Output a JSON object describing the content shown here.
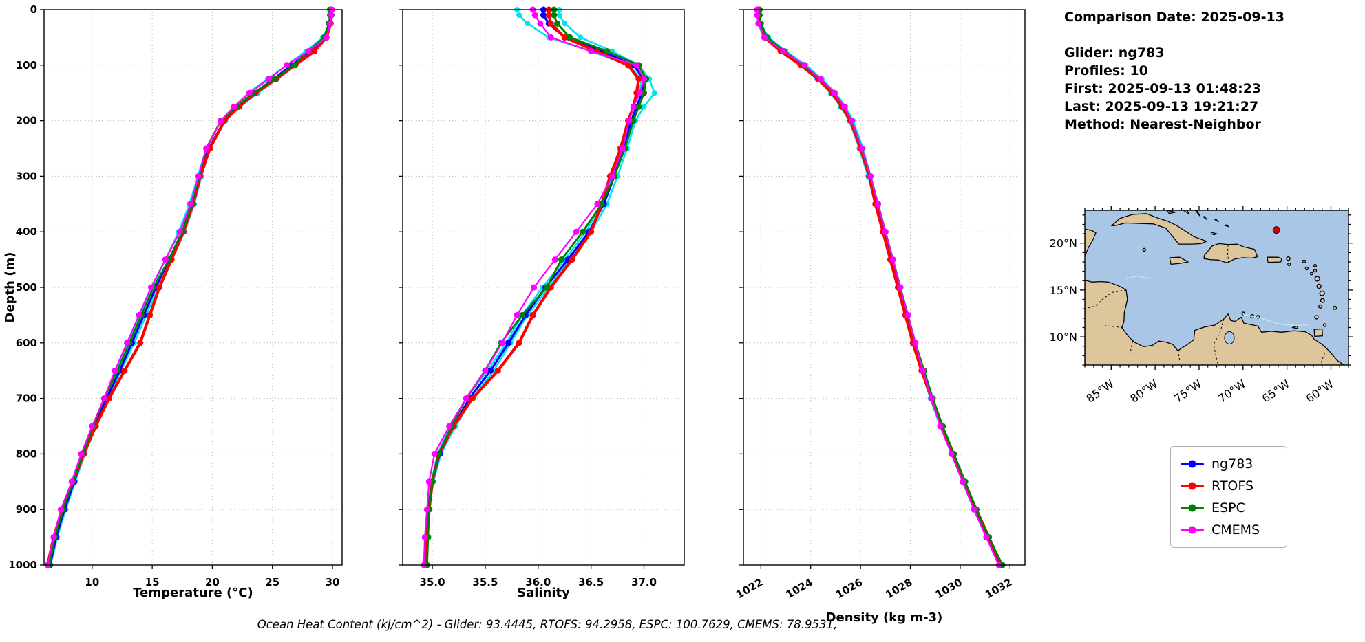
{
  "info": {
    "comparison_date": "Comparison Date: 2025-09-13",
    "glider": "Glider: ng783",
    "profiles": "Profiles: 10",
    "first": "First: 2025-09-13 01:48:23",
    "last": "Last: 2025-09-13 19:21:27",
    "method": "Method: Nearest-Neighbor"
  },
  "footer": {
    "ohc_text": "Ocean Heat Content (kJ/cm^2) - Glider: 93.4445,  RTOFS: 94.2958,  ESPC: 100.7629,  CMEMS: 78.9531,"
  },
  "map": {
    "extent": {
      "lon_min": -88,
      "lon_max": -58,
      "lat_min": 7,
      "lat_max": 23.5
    },
    "lat_ticks": [
      {
        "value": 20,
        "label": "20°N"
      },
      {
        "value": 15,
        "label": "15°N"
      },
      {
        "value": 10,
        "label": "10°N"
      }
    ],
    "lon_ticks": [
      {
        "value": -85,
        "label": "85°W"
      },
      {
        "value": -80,
        "label": "80°W"
      },
      {
        "value": -75,
        "label": "75°W"
      },
      {
        "value": -70,
        "label": "70°W"
      },
      {
        "value": -65,
        "label": "65°W"
      },
      {
        "value": -60,
        "label": "60°W"
      }
    ],
    "marker": {
      "lon": -66.2,
      "lat": 21.4,
      "color": "#d40000"
    },
    "ocean_color": "#a9c6e6",
    "land_color": "#dec69c"
  },
  "chart_data": {
    "type": "line",
    "ylabel": "Depth (m)",
    "ylim": [
      0,
      1000
    ],
    "yticks": [
      0,
      100,
      200,
      300,
      400,
      500,
      600,
      700,
      800,
      900,
      1000
    ],
    "grid": "dotted",
    "legend_position": "right-outside",
    "depths": [
      0,
      10,
      25,
      50,
      75,
      100,
      125,
      150,
      175,
      200,
      250,
      300,
      350,
      400,
      450,
      500,
      550,
      600,
      650,
      700,
      750,
      800,
      850,
      900,
      950,
      1000
    ],
    "panels": [
      {
        "id": "temperature",
        "xlabel": "Temperature (°C)",
        "xlim": [
          6,
          30.8
        ],
        "xticks": [
          10,
          15,
          20,
          25,
          30
        ],
        "xtick_labels": [
          "10",
          "15",
          "20",
          "25",
          "30"
        ],
        "rotate_xticks": false
      },
      {
        "id": "salinity",
        "xlabel": "Salinity",
        "xlim": [
          34.72,
          37.38
        ],
        "xticks": [
          35.0,
          35.5,
          36.0,
          36.5,
          37.0
        ],
        "xtick_labels": [
          "35.0",
          "35.5",
          "36.0",
          "36.5",
          "37.0"
        ],
        "rotate_xticks": false
      },
      {
        "id": "density",
        "xlabel": "Density (kg m-3)",
        "xlim": [
          1021.3,
          1032.6
        ],
        "xticks": [
          1022,
          1024,
          1026,
          1028,
          1030,
          1032
        ],
        "xtick_labels": [
          "1022",
          "1024",
          "1026",
          "1028",
          "1030",
          "1032"
        ],
        "rotate_xticks": true
      }
    ],
    "series": [
      {
        "name": "glider-profile-a",
        "color": "#00e5f0",
        "lw": 2.6,
        "ms": 4,
        "in_legend": false,
        "temperature": [
          30.0,
          29.95,
          29.85,
          29.45,
          28.4,
          26.9,
          25.4,
          23.8,
          22.3,
          21.1,
          19.8,
          19.1,
          18.5,
          17.7,
          16.6,
          15.5,
          14.5,
          13.5,
          12.4,
          11.3,
          10.3,
          9.4,
          8.6,
          7.8,
          7.1,
          6.55
        ],
        "salinity": [
          36.2,
          36.2,
          36.25,
          36.4,
          36.7,
          36.95,
          37.05,
          37.1,
          37.0,
          36.92,
          36.84,
          36.75,
          36.65,
          36.5,
          36.3,
          36.1,
          35.9,
          35.74,
          35.58,
          35.38,
          35.22,
          35.08,
          35.01,
          34.97,
          34.95,
          34.94
        ],
        "density": [
          1021.95,
          1021.95,
          1022.0,
          1022.3,
          1023.0,
          1023.8,
          1024.45,
          1025.0,
          1025.4,
          1025.7,
          1026.1,
          1026.4,
          1026.7,
          1027.0,
          1027.3,
          1027.6,
          1027.9,
          1028.2,
          1028.55,
          1028.9,
          1029.3,
          1029.75,
          1030.2,
          1030.65,
          1031.1,
          1031.6
        ]
      },
      {
        "name": "glider-profile-b",
        "color": "#00e5f0",
        "lw": 2.6,
        "ms": 4,
        "in_legend": false,
        "temperature": [
          29.85,
          29.85,
          29.75,
          29.2,
          27.8,
          26.2,
          24.6,
          23.0,
          21.8,
          20.7,
          19.5,
          18.8,
          18.1,
          17.2,
          16.1,
          15.0,
          14.0,
          13.0,
          12.0,
          11.0,
          10.05,
          9.1,
          8.3,
          7.5,
          6.85,
          6.4
        ],
        "salinity": [
          35.8,
          35.82,
          35.9,
          36.1,
          36.5,
          36.85,
          36.98,
          36.95,
          36.9,
          36.85,
          36.77,
          36.7,
          36.6,
          36.45,
          36.25,
          36.04,
          35.85,
          35.7,
          35.52,
          35.32,
          35.17,
          35.05,
          34.99,
          34.95,
          34.93,
          34.92
        ],
        "density": [
          1021.85,
          1021.85,
          1021.9,
          1022.1,
          1022.8,
          1023.6,
          1024.25,
          1024.8,
          1025.2,
          1025.55,
          1025.95,
          1026.3,
          1026.6,
          1026.9,
          1027.2,
          1027.5,
          1027.8,
          1028.1,
          1028.45,
          1028.8,
          1029.2,
          1029.65,
          1030.1,
          1030.55,
          1031.05,
          1031.55
        ]
      },
      {
        "name": "ng783",
        "color": "#0000ff",
        "lw": 3.2,
        "ms": 4.5,
        "in_legend": true,
        "temperature": [
          29.9,
          29.9,
          29.8,
          29.4,
          28.2,
          26.6,
          25.1,
          23.5,
          22.1,
          21.0,
          19.7,
          18.95,
          18.3,
          17.5,
          16.4,
          15.3,
          14.3,
          13.3,
          12.3,
          11.2,
          10.2,
          9.3,
          8.5,
          7.7,
          7.0,
          6.5
        ],
        "salinity": [
          36.05,
          36.05,
          36.1,
          36.25,
          36.6,
          36.9,
          37.0,
          36.98,
          36.93,
          36.88,
          36.8,
          36.72,
          36.62,
          36.48,
          36.28,
          36.07,
          35.88,
          35.72,
          35.55,
          35.35,
          35.2,
          35.07,
          35.0,
          34.96,
          34.94,
          34.93
        ],
        "density": [
          1021.9,
          1021.9,
          1021.95,
          1022.2,
          1022.9,
          1023.7,
          1024.35,
          1024.9,
          1025.3,
          1025.6,
          1026.0,
          1026.35,
          1026.65,
          1026.95,
          1027.25,
          1027.55,
          1027.85,
          1028.15,
          1028.5,
          1028.85,
          1029.25,
          1029.7,
          1030.15,
          1030.6,
          1031.1,
          1031.6
        ]
      },
      {
        "name": "RTOFS",
        "color": "#ff0000",
        "lw": 4.2,
        "ms": 4.5,
        "in_legend": true,
        "temperature": [
          29.9,
          29.9,
          29.85,
          29.5,
          28.5,
          26.9,
          25.3,
          23.6,
          22.2,
          21.0,
          19.8,
          19.0,
          18.4,
          17.6,
          16.6,
          15.6,
          14.8,
          14.0,
          12.7,
          11.4,
          10.3,
          9.3,
          8.4,
          7.5,
          6.8,
          6.3
        ],
        "salinity": [
          36.1,
          36.1,
          36.12,
          36.25,
          36.55,
          36.85,
          36.95,
          36.93,
          36.9,
          36.85,
          36.78,
          36.68,
          36.6,
          36.5,
          36.32,
          36.12,
          35.95,
          35.82,
          35.62,
          35.38,
          35.2,
          35.06,
          35.0,
          34.97,
          34.95,
          34.94
        ],
        "density": [
          1021.9,
          1021.9,
          1021.95,
          1022.15,
          1022.8,
          1023.6,
          1024.3,
          1024.85,
          1025.25,
          1025.6,
          1026.0,
          1026.35,
          1026.6,
          1026.9,
          1027.2,
          1027.5,
          1027.8,
          1028.1,
          1028.45,
          1028.85,
          1029.25,
          1029.7,
          1030.15,
          1030.65,
          1031.15,
          1031.65
        ]
      },
      {
        "name": "ESPC",
        "color": "#008000",
        "lw": 2.8,
        "ms": 4.5,
        "in_legend": true,
        "temperature": [
          29.8,
          29.8,
          29.7,
          29.3,
          28.0,
          26.8,
          25.2,
          23.4,
          22.0,
          20.7,
          19.5,
          18.9,
          18.3,
          17.5,
          16.4,
          15.1,
          14.1,
          13.1,
          12.1,
          11.0,
          10.1,
          9.2,
          8.4,
          7.6,
          6.9,
          6.45
        ],
        "salinity": [
          36.15,
          36.15,
          36.18,
          36.3,
          36.65,
          36.95,
          37.02,
          37.0,
          36.95,
          36.9,
          36.82,
          36.72,
          36.6,
          36.42,
          36.22,
          36.08,
          35.85,
          35.65,
          35.5,
          35.32,
          35.18,
          35.06,
          35.0,
          34.97,
          34.96,
          34.95
        ],
        "density": [
          1021.95,
          1021.95,
          1022.0,
          1022.25,
          1022.95,
          1023.7,
          1024.4,
          1024.95,
          1025.35,
          1025.65,
          1026.05,
          1026.4,
          1026.7,
          1027.0,
          1027.3,
          1027.6,
          1027.9,
          1028.2,
          1028.55,
          1028.9,
          1029.3,
          1029.75,
          1030.2,
          1030.65,
          1031.15,
          1031.7
        ]
      },
      {
        "name": "CMEMS",
        "color": "#ff00ff",
        "lw": 2.2,
        "ms": 4.5,
        "in_legend": true,
        "temperature": [
          29.95,
          29.9,
          29.8,
          29.5,
          28.0,
          26.2,
          24.7,
          23.1,
          21.8,
          20.7,
          19.5,
          18.85,
          18.2,
          17.3,
          16.1,
          14.9,
          13.9,
          12.9,
          11.9,
          11.0,
          10.0,
          9.1,
          8.3,
          7.4,
          6.8,
          6.3
        ],
        "salinity": [
          35.95,
          35.97,
          36.02,
          36.12,
          36.5,
          36.93,
          37.0,
          36.96,
          36.9,
          36.86,
          36.8,
          36.7,
          36.56,
          36.36,
          36.16,
          35.96,
          35.8,
          35.66,
          35.5,
          35.32,
          35.16,
          35.02,
          34.97,
          34.95,
          34.93,
          34.92
        ],
        "density": [
          1021.85,
          1021.85,
          1021.9,
          1022.15,
          1022.9,
          1023.75,
          1024.4,
          1024.95,
          1025.35,
          1025.65,
          1026.05,
          1026.4,
          1026.7,
          1027.0,
          1027.3,
          1027.6,
          1027.9,
          1028.2,
          1028.5,
          1028.85,
          1029.2,
          1029.65,
          1030.1,
          1030.55,
          1031.05,
          1031.55
        ]
      }
    ]
  }
}
